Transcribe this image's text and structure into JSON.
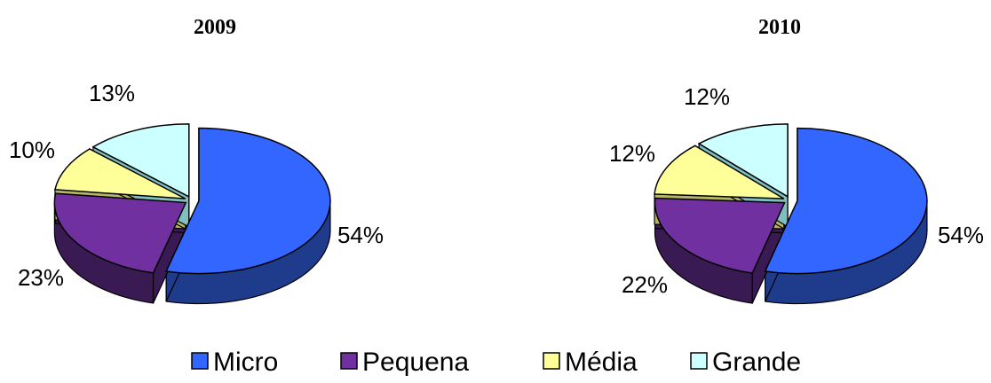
{
  "chart_data": [
    {
      "type": "pie",
      "title": "2009",
      "categories": [
        "Micro",
        "Pequena",
        "Média",
        "Grande"
      ],
      "values": [
        54,
        23,
        10,
        13
      ],
      "labels": [
        "54%",
        "23%",
        "10%",
        "13%"
      ],
      "exploded": true,
      "style": "3d"
    },
    {
      "type": "pie",
      "title": "2010",
      "categories": [
        "Micro",
        "Pequena",
        "Média",
        "Grande"
      ],
      "values": [
        54,
        22,
        12,
        12
      ],
      "labels": [
        "54%",
        "22%",
        "12%",
        "12%"
      ],
      "exploded": true,
      "style": "3d"
    }
  ],
  "legend": {
    "placement": "bottom",
    "items": [
      {
        "label": "Micro",
        "color": "#3366FF"
      },
      {
        "label": "Pequena",
        "color": "#7030A0"
      },
      {
        "label": "Média",
        "color": "#FFFF99"
      },
      {
        "label": "Grande",
        "color": "#CCFFFF"
      }
    ]
  }
}
